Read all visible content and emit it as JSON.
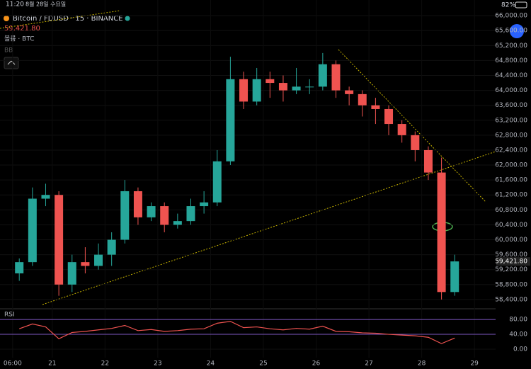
{
  "status_bar": {
    "time": "11:20",
    "date": "8월 28일 수요일",
    "battery": "82%"
  },
  "chart_data": [
    {
      "type": "candlestick",
      "title": "Bitcoin / FDUSD · 15 · BINANCE",
      "price_label": "59,421.80",
      "volume_label": "볼륨 · BTC",
      "indicator_label": "BB",
      "up_color": "#26a69a",
      "down_color": "#ef5350",
      "x": [
        20.25,
        20.5,
        20.75,
        21,
        21.25,
        21.5,
        21.75,
        22,
        22.25,
        22.5,
        22.75,
        23,
        23.25,
        23.5,
        23.75,
        24,
        24.25,
        24.5,
        24.75,
        25,
        25.25,
        25.5,
        25.75,
        26,
        26.25,
        26.5,
        26.75,
        27,
        27.25,
        27.5,
        27.75,
        28,
        28.25,
        28.5
      ],
      "open": [
        59100,
        59400,
        61100,
        61200,
        58800,
        59400,
        59300,
        59600,
        60000,
        61300,
        60600,
        60900,
        60400,
        60500,
        60900,
        61000,
        62100,
        64300,
        63700,
        64300,
        64200,
        64000,
        64100,
        64100,
        64700,
        64000,
        63900,
        63600,
        63500,
        63100,
        62800,
        62400,
        61800,
        58600
      ],
      "high": [
        59500,
        61400,
        61500,
        61300,
        59600,
        59800,
        59900,
        60200,
        61600,
        61400,
        61000,
        61000,
        60700,
        61100,
        61300,
        62400,
        64900,
        64500,
        64600,
        64500,
        64400,
        64600,
        64300,
        65000,
        64800,
        64100,
        64000,
        63800,
        63600,
        63200,
        62900,
        62500,
        62200,
        59600
      ],
      "low": [
        58900,
        59300,
        60900,
        58500,
        58600,
        59100,
        59200,
        59300,
        59900,
        60400,
        60500,
        60200,
        60300,
        60400,
        60700,
        60900,
        62000,
        63500,
        63600,
        63800,
        63700,
        63900,
        63900,
        64000,
        63800,
        63600,
        63300,
        63100,
        62800,
        62600,
        62100,
        61600,
        58400,
        58500
      ],
      "close": [
        59400,
        61100,
        61200,
        58800,
        59400,
        59300,
        59600,
        60000,
        61300,
        60600,
        60900,
        60400,
        60500,
        60900,
        61000,
        62100,
        64300,
        63700,
        64300,
        64200,
        64000,
        64100,
        64100,
        64700,
        64000,
        63900,
        63600,
        63500,
        63100,
        62800,
        62400,
        61800,
        58600,
        59420
      ],
      "xlim": [
        20.01,
        29.4
      ],
      "xticks": [
        {
          "value": 20.25,
          "label": "06:00"
        },
        21,
        22,
        23,
        24,
        25,
        26,
        27,
        28,
        29
      ],
      "ylim": [
        58170,
        66420
      ],
      "yticks": [
        {
          "value": 58400,
          "label": "58,400.00"
        },
        {
          "value": 58800,
          "label": "58,800.00"
        },
        {
          "value": 59200,
          "label": "59,200.00"
        },
        {
          "value": 59600,
          "label": "59,600.00"
        },
        {
          "value": 60000,
          "label": "60,000.00"
        },
        {
          "value": 60400,
          "label": "60,400.00"
        },
        {
          "value": 60800,
          "label": "60,800.00"
        },
        {
          "value": 61200,
          "label": "61,200.00"
        },
        {
          "value": 61600,
          "label": "61,600.00"
        },
        {
          "value": 62000,
          "label": "62,000.00"
        },
        {
          "value": 62400,
          "label": "62,400.00"
        },
        {
          "value": 62800,
          "label": "62,800.00"
        },
        {
          "value": 63200,
          "label": "63,200.00"
        },
        {
          "value": 63600,
          "label": "63,600.00"
        },
        {
          "value": 64000,
          "label": "64,000.00"
        },
        {
          "value": 64400,
          "label": "64,400.00"
        },
        {
          "value": 64800,
          "label": "64,800.00"
        },
        {
          "value": 65200,
          "label": "65,200.00"
        },
        {
          "value": 65600,
          "label": "65,600.00"
        },
        {
          "value": 66000,
          "label": "66,000.00"
        }
      ]
    },
    {
      "type": "line",
      "title": "RSI",
      "color": "#ef5350",
      "band_color": "#7e57c2",
      "x": [
        20.25,
        20.5,
        20.75,
        21,
        21.25,
        21.5,
        21.75,
        22,
        22.25,
        22.5,
        22.75,
        23,
        23.25,
        23.5,
        23.75,
        24,
        24.25,
        24.5,
        24.75,
        25,
        25.25,
        25.5,
        25.75,
        26,
        26.25,
        26.5,
        26.75,
        27,
        27.25,
        27.5,
        27.75,
        28,
        28.25,
        28.5
      ],
      "values": [
        55,
        68,
        60,
        28,
        45,
        48,
        52,
        56,
        64,
        50,
        53,
        48,
        50,
        54,
        55,
        70,
        75,
        58,
        60,
        55,
        52,
        56,
        54,
        62,
        48,
        47,
        44,
        43,
        40,
        38,
        36,
        32,
        15,
        30
      ],
      "ylim": [
        -23,
        107
      ],
      "yticks": [
        {
          "value": 80,
          "label": "80.00"
        },
        {
          "value": 40,
          "label": "40.00"
        },
        {
          "value": 0,
          "label": "0.00"
        }
      ]
    }
  ]
}
